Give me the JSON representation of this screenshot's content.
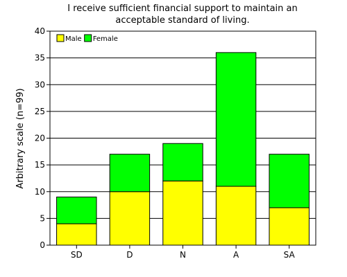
{
  "chart_data": {
    "type": "bar",
    "stacked": true,
    "title": "I receive sufficient financial support to maintain an acceptable standard of living.",
    "title_lines": [
      "I receive sufficient financial support to maintain an",
      "acceptable standard of living."
    ],
    "xlabel": "",
    "ylabel": "Arbitrary scale (n=99)",
    "categories": [
      "SD",
      "D",
      "N",
      "A",
      "SA"
    ],
    "series": [
      {
        "name": "Male",
        "color": "#ffff00",
        "values": [
          4,
          10,
          12,
          11,
          7
        ]
      },
      {
        "name": "Female",
        "color": "#00ff00",
        "values": [
          5,
          7,
          7,
          25,
          10
        ]
      }
    ],
    "ylim": [
      0,
      40
    ],
    "yticks": [
      0,
      5,
      10,
      15,
      20,
      25,
      30,
      35,
      40
    ],
    "grid": true,
    "legend": "top-left"
  }
}
